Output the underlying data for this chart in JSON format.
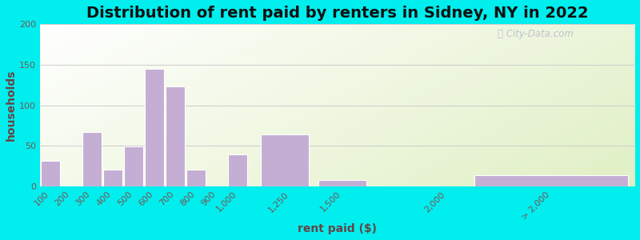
{
  "title": "Distribution of rent paid by renters in Sidney, NY in 2022",
  "xlabel": "rent paid ($)",
  "ylabel": "households",
  "bar_color": "#c4aed4",
  "bar_edgecolor": "#ffffff",
  "background_outer": "#00eeee",
  "ylim": [
    0,
    200
  ],
  "yticks": [
    0,
    50,
    100,
    150,
    200
  ],
  "tick_labels": [
    "100",
    "200",
    "300",
    "400",
    "500",
    "600",
    "700",
    "800",
    "900",
    "1,000",
    "1,250",
    "1,500",
    "2,000",
    "> 2,000"
  ],
  "tick_positions": [
    100,
    200,
    300,
    400,
    500,
    600,
    700,
    800,
    900,
    1000,
    1250,
    1500,
    2000,
    2500
  ],
  "bar_lefts": [
    50,
    150,
    250,
    350,
    450,
    550,
    650,
    750,
    850,
    950,
    1100,
    1375,
    1750,
    2100
  ],
  "bar_widths": [
    100,
    100,
    100,
    100,
    100,
    100,
    100,
    100,
    100,
    100,
    250,
    250,
    250,
    800
  ],
  "values": [
    32,
    0,
    67,
    21,
    49,
    145,
    123,
    21,
    0,
    39,
    64,
    8,
    0,
    14
  ],
  "title_fontsize": 14,
  "axis_label_fontsize": 10,
  "tick_fontsize": 8
}
